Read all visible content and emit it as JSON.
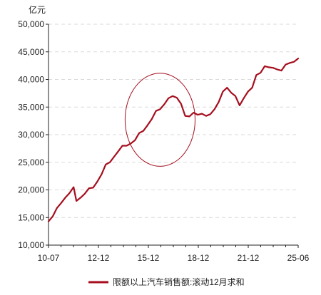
{
  "chart_data": {
    "type": "line",
    "unit": "亿元",
    "legend_position": "bottom",
    "grid": true,
    "x_tick_labels": [
      "10-07",
      "12-12",
      "15-12",
      "18-12",
      "21-12",
      "25-06"
    ],
    "y_ticks": [
      10000,
      15000,
      20000,
      25000,
      30000,
      35000,
      40000,
      45000,
      50000
    ],
    "y_tick_labels": [
      "10,000",
      "15,000",
      "20,000",
      "25,000",
      "30,000",
      "35,000",
      "40,000",
      "45,000",
      "50,000"
    ],
    "ylim": [
      10000,
      50000
    ],
    "series": [
      {
        "name": "限额以上汽车销售额:滚动12月求和",
        "color": "#A50F1E",
        "points": [
          [
            "2010-07",
            14300
          ],
          [
            "2010-10",
            15200
          ],
          [
            "2011-01",
            16700
          ],
          [
            "2011-04",
            17600
          ],
          [
            "2011-07",
            18600
          ],
          [
            "2011-10",
            19400
          ],
          [
            "2012-01",
            20500
          ],
          [
            "2012-03",
            18000
          ],
          [
            "2012-06",
            18600
          ],
          [
            "2012-09",
            19300
          ],
          [
            "2012-12",
            20300
          ],
          [
            "2013-03",
            20400
          ],
          [
            "2013-06",
            21500
          ],
          [
            "2013-09",
            22800
          ],
          [
            "2013-12",
            24600
          ],
          [
            "2014-03",
            25000
          ],
          [
            "2014-06",
            26000
          ],
          [
            "2014-09",
            27000
          ],
          [
            "2014-12",
            28000
          ],
          [
            "2015-03",
            28000
          ],
          [
            "2015-06",
            28400
          ],
          [
            "2015-09",
            29000
          ],
          [
            "2015-12",
            30300
          ],
          [
            "2016-03",
            30700
          ],
          [
            "2016-06",
            31700
          ],
          [
            "2016-09",
            32800
          ],
          [
            "2016-12",
            34300
          ],
          [
            "2017-03",
            34600
          ],
          [
            "2017-06",
            35500
          ],
          [
            "2017-09",
            36600
          ],
          [
            "2017-12",
            37000
          ],
          [
            "2018-03",
            36700
          ],
          [
            "2018-06",
            35600
          ],
          [
            "2018-09",
            33400
          ],
          [
            "2018-12",
            33300
          ],
          [
            "2019-03",
            34000
          ],
          [
            "2019-06",
            33600
          ],
          [
            "2019-09",
            33800
          ],
          [
            "2019-12",
            33400
          ],
          [
            "2020-03",
            33700
          ],
          [
            "2020-06",
            34600
          ],
          [
            "2020-09",
            35900
          ],
          [
            "2020-12",
            37800
          ],
          [
            "2021-03",
            38500
          ],
          [
            "2021-06",
            37600
          ],
          [
            "2021-09",
            37000
          ],
          [
            "2021-12",
            35300
          ],
          [
            "2022-03",
            36600
          ],
          [
            "2022-06",
            37800
          ],
          [
            "2022-09",
            38500
          ],
          [
            "2022-12",
            40800
          ],
          [
            "2023-03",
            41200
          ],
          [
            "2023-06",
            42400
          ],
          [
            "2023-09",
            42200
          ],
          [
            "2023-12",
            42100
          ],
          [
            "2024-03",
            41800
          ],
          [
            "2024-06",
            41600
          ],
          [
            "2024-09",
            42700
          ],
          [
            "2024-12",
            43000
          ],
          [
            "2025-03",
            43200
          ],
          [
            "2025-06",
            43800
          ]
        ]
      }
    ],
    "highlight_annotation": {
      "shape": "ellipse",
      "from": "2015-06",
      "to": "2018-12",
      "color": "#A50F1E"
    }
  }
}
